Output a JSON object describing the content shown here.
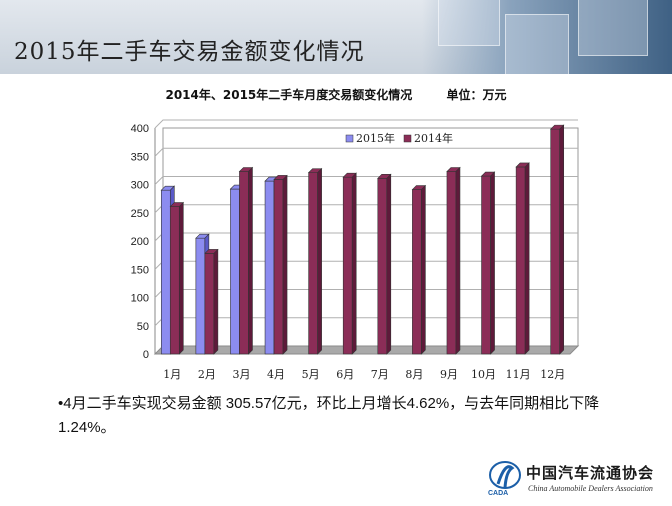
{
  "header": {
    "title": "2015年二手车交易金额变化情况"
  },
  "chart_header": {
    "title": "2014年、2015年二手车月度交易额变化情况",
    "unit": "单位：万元"
  },
  "chart_data": {
    "type": "bar",
    "categories": [
      "1月",
      "2月",
      "3月",
      "4月",
      "5月",
      "6月",
      "7月",
      "8月",
      "9月",
      "10月",
      "11月",
      "12月"
    ],
    "series": [
      {
        "name": "2015年",
        "values": [
          290,
          205,
          292,
          306,
          null,
          null,
          null,
          null,
          null,
          null,
          null,
          null
        ],
        "color": "#8c8cf0"
      },
      {
        "name": "2014年",
        "values": [
          261,
          178,
          323,
          309,
          321,
          313,
          311,
          291,
          323,
          315,
          331,
          398
        ],
        "color": "#8b2d57"
      }
    ],
    "yticks": [
      0,
      50,
      100,
      150,
      200,
      250,
      300,
      350,
      400
    ],
    "ylim": [
      0,
      400
    ],
    "grid": true,
    "legend": "top-center"
  },
  "bullet": {
    "text": "•4月二手车实现交易金额 305.57亿元，环比上月增长4.62%，与去年同期相比下降1.24%。"
  },
  "logo": {
    "cn": "中国汽车流通协会",
    "en": "China Automobile Dealers Association",
    "abbr": "CADA"
  }
}
